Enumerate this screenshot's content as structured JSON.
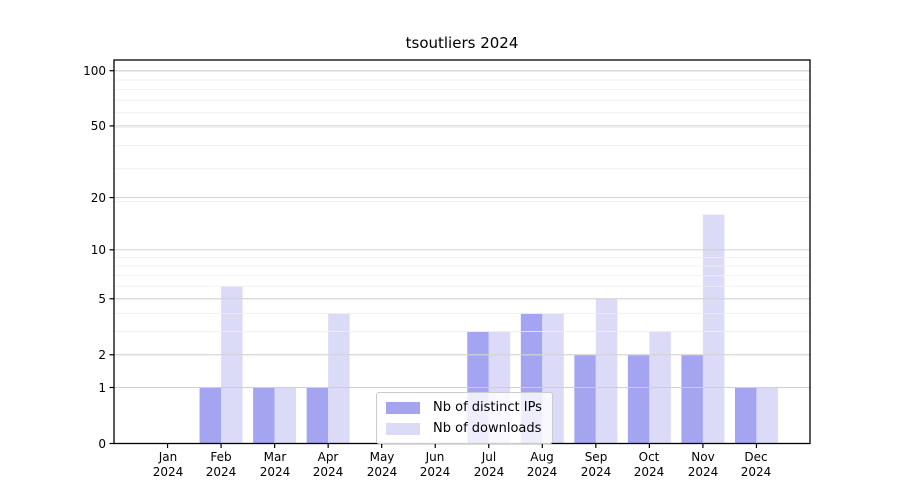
{
  "figure": {
    "background": "#ffffff",
    "text_color": "#000000",
    "grid_minor_color": "#efefef",
    "grid_major_color": "#cccccc",
    "spine_color": "#000000"
  },
  "chart_data": {
    "type": "bar",
    "title": "tsoutliers 2024",
    "categories": [
      "Jan 2024",
      "Feb 2024",
      "Mar 2024",
      "Apr 2024",
      "May 2024",
      "Jun 2024",
      "Jul 2024",
      "Aug 2024",
      "Sep 2024",
      "Oct 2024",
      "Nov 2024",
      "Dec 2024"
    ],
    "series": [
      {
        "name": "Nb of distinct IPs",
        "color": "#a4a4f1",
        "values": [
          0,
          1,
          1,
          1,
          0,
          0,
          3,
          4,
          2,
          2,
          2,
          1
        ]
      },
      {
        "name": "Nb of downloads",
        "color": "#dbdbf8",
        "values": [
          0,
          6,
          1,
          4,
          0,
          0,
          3,
          4,
          5,
          3,
          16,
          1
        ]
      }
    ],
    "xlabel": "",
    "ylabel": "",
    "y_axis": {
      "scale": "log1p",
      "ticks": [
        0,
        1,
        2,
        5,
        10,
        20,
        50,
        100
      ],
      "range": [
        0,
        115
      ],
      "minor_grid_values": [
        1,
        2,
        3,
        4,
        5,
        6,
        7,
        8,
        9,
        19,
        29,
        39,
        49,
        59,
        69,
        79,
        89,
        99
      ]
    },
    "grid": "horizontal major+minor, drawn over bars",
    "legend": {
      "position": "inside lower-center-left",
      "entries": [
        "Nb of distinct IPs",
        "Nb of downloads"
      ]
    }
  }
}
